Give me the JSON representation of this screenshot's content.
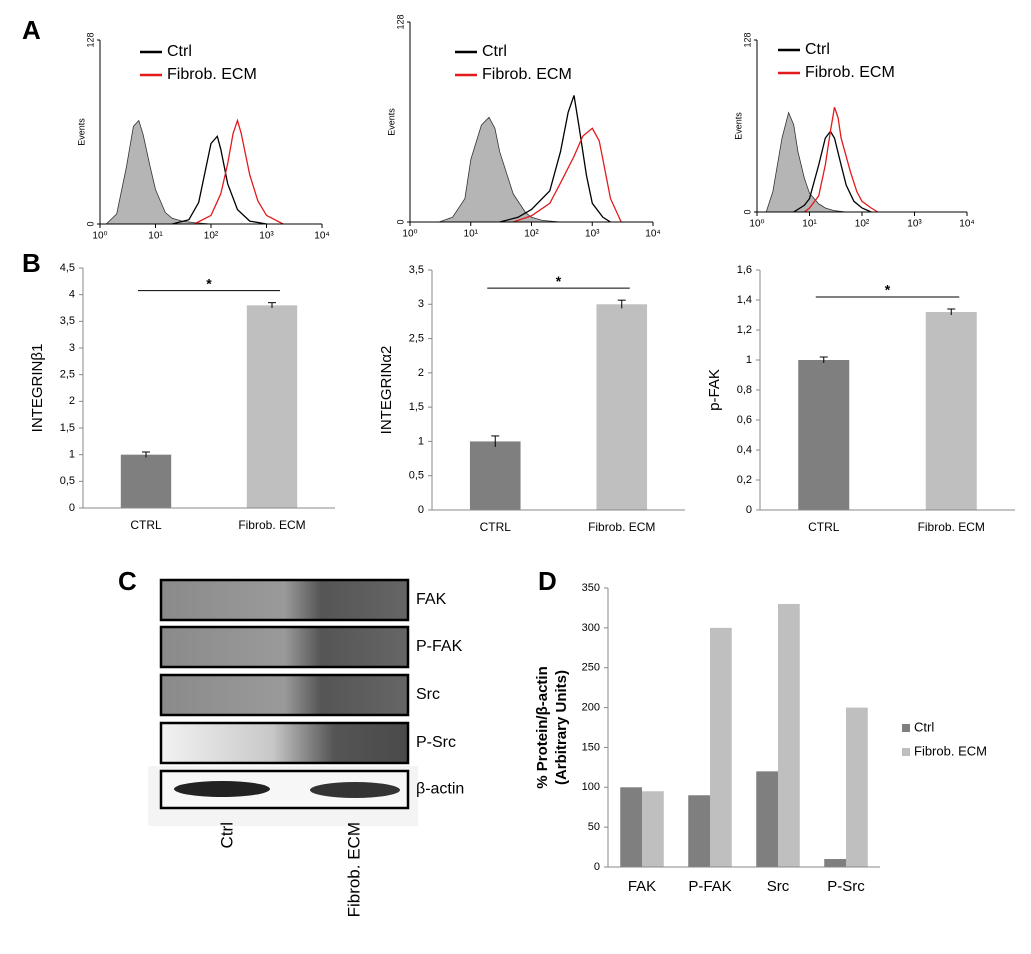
{
  "panels": [
    "A",
    "B",
    "C",
    "D"
  ],
  "blot": {
    "bands": [
      "FAK",
      "P-FAK",
      "Src",
      "P-Src",
      "β-actin"
    ],
    "lanes": [
      "Ctrl",
      "Fibrob. ECM"
    ]
  },
  "chart_data": [
    {
      "type": "line",
      "x_scale": "log",
      "ylabel": "Events",
      "legend": "upper left",
      "xlim": [
        1,
        10000
      ],
      "xticks": [
        {
          "value": 1,
          "label": "10⁰"
        },
        {
          "value": 10,
          "label": "10¹"
        },
        {
          "value": 100,
          "label": "10²"
        },
        {
          "value": 1000,
          "label": "10³"
        },
        {
          "value": 10000,
          "label": "10⁴"
        }
      ],
      "ylim": [
        0,
        128
      ],
      "yticks": [
        0,
        128
      ],
      "series": [
        {
          "color": "#b5b5b5",
          "fill": true,
          "x": [
            1.3,
            2,
            3,
            4,
            5,
            6,
            8,
            10,
            15,
            20,
            30,
            50,
            100
          ],
          "values": [
            0,
            7,
            40,
            68,
            72,
            62,
            40,
            24,
            8,
            4,
            2,
            1,
            0
          ]
        },
        {
          "name": "Ctrl",
          "color": "#000000",
          "x": [
            20,
            40,
            60,
            80,
            100,
            130,
            150,
            200,
            300,
            500,
            1000
          ],
          "values": [
            0,
            3,
            15,
            38,
            56,
            61,
            52,
            28,
            10,
            2,
            0
          ]
        },
        {
          "name": "Fibrob. ECM",
          "color": "#e31a1c",
          "x": [
            50,
            100,
            150,
            200,
            250,
            300,
            350,
            500,
            700,
            1000,
            2000
          ],
          "values": [
            0,
            6,
            21,
            42,
            63,
            72,
            63,
            34,
            16,
            6,
            0
          ]
        }
      ]
    },
    {
      "type": "line",
      "x_scale": "log",
      "ylabel": "Events",
      "legend": "upper left",
      "xlim": [
        1,
        10000
      ],
      "xticks": [
        {
          "value": 1,
          "label": "10⁰"
        },
        {
          "value": 10,
          "label": "10¹"
        },
        {
          "value": 100,
          "label": "10²"
        },
        {
          "value": 1000,
          "label": "10³"
        },
        {
          "value": 10000,
          "label": "10⁴"
        }
      ],
      "ylim": [
        0,
        128
      ],
      "yticks": [
        0,
        128
      ],
      "series": [
        {
          "color": "#b5b5b5",
          "fill": true,
          "x": [
            3,
            5,
            8,
            10,
            15,
            20,
            25,
            30,
            50,
            80,
            100,
            150,
            300
          ],
          "values": [
            0,
            3,
            15,
            40,
            62,
            67,
            60,
            45,
            18,
            6,
            3,
            1,
            0
          ]
        },
        {
          "name": "Ctrl",
          "color": "#000000",
          "x": [
            30,
            60,
            100,
            200,
            300,
            400,
            500,
            600,
            800,
            1000,
            1500,
            2000
          ],
          "values": [
            0,
            3,
            8,
            20,
            45,
            70,
            81,
            62,
            30,
            12,
            3,
            0
          ]
        },
        {
          "name": "Fibrob. ECM",
          "color": "#e31a1c",
          "x": [
            50,
            100,
            200,
            300,
            500,
            700,
            1000,
            1300,
            1500,
            2000,
            3000
          ],
          "values": [
            0,
            4,
            12,
            25,
            42,
            55,
            60,
            52,
            40,
            15,
            0
          ]
        }
      ]
    },
    {
      "type": "line",
      "x_scale": "log",
      "ylabel": "Events",
      "legend": "upper left",
      "xlim": [
        1,
        10000
      ],
      "xticks": [
        {
          "value": 1,
          "label": "10⁰"
        },
        {
          "value": 10,
          "label": "10¹"
        },
        {
          "value": 100,
          "label": "10²"
        },
        {
          "value": 1000,
          "label": "10³"
        },
        {
          "value": 10000,
          "label": "10⁴"
        }
      ],
      "ylim": [
        0,
        128
      ],
      "yticks": [
        0,
        128
      ],
      "series": [
        {
          "color": "#b5b5b5",
          "fill": true,
          "x": [
            1.5,
            2,
            3,
            4,
            5,
            6,
            8,
            10,
            15,
            20,
            30,
            50
          ],
          "values": [
            0,
            15,
            55,
            74,
            65,
            45,
            25,
            14,
            6,
            3,
            1,
            0
          ]
        },
        {
          "name": "Ctrl",
          "color": "#000000",
          "x": [
            5,
            8,
            10,
            15,
            20,
            25,
            30,
            40,
            50,
            70,
            100,
            150
          ],
          "values": [
            0,
            5,
            10,
            35,
            55,
            60,
            55,
            35,
            20,
            8,
            3,
            0
          ]
        },
        {
          "name": "Fibrob. ECM",
          "color": "#e31a1c",
          "x": [
            8,
            10,
            15,
            20,
            25,
            30,
            35,
            40,
            60,
            80,
            100,
            150,
            200
          ],
          "values": [
            0,
            3,
            12,
            35,
            60,
            78,
            70,
            55,
            30,
            15,
            8,
            3,
            0
          ]
        }
      ]
    },
    {
      "type": "bar",
      "ylabel": "INTEGRINβ1",
      "categories": [
        "CTRL",
        "Fibrob. ECM"
      ],
      "values": [
        1,
        3.8
      ],
      "errors": [
        0.05,
        0.05
      ],
      "colors": [
        "#7f7f7f",
        "#bfbfbf"
      ],
      "annotation": "*",
      "ylim": [
        0,
        4.5
      ],
      "yticks": [
        0,
        {
          "value": 0.5,
          "label": "0,5"
        },
        1,
        {
          "value": 1.5,
          "label": "1,5"
        },
        2,
        {
          "value": 2.5,
          "label": "2,5"
        },
        3,
        {
          "value": 3.5,
          "label": "3,5"
        },
        4,
        {
          "value": 4.5,
          "label": "4,5"
        }
      ]
    },
    {
      "type": "bar",
      "ylabel": "INTEGRINα2",
      "categories": [
        "CTRL",
        "Fibrob. ECM"
      ],
      "values": [
        1,
        3.0
      ],
      "errors": [
        0.08,
        0.06
      ],
      "colors": [
        "#7f7f7f",
        "#bfbfbf"
      ],
      "annotation": "*",
      "ylim": [
        0,
        3.5
      ],
      "yticks": [
        0,
        {
          "value": 0.5,
          "label": "0,5"
        },
        1,
        {
          "value": 1.5,
          "label": "1,5"
        },
        2,
        {
          "value": 2.5,
          "label": "2,5"
        },
        3,
        {
          "value": 3.5,
          "label": "3,5"
        }
      ]
    },
    {
      "type": "bar",
      "ylabel": "p-FAK",
      "categories": [
        "CTRL",
        "Fibrob. ECM"
      ],
      "values": [
        1,
        1.32
      ],
      "errors": [
        0.02,
        0.02
      ],
      "colors": [
        "#7f7f7f",
        "#bfbfbf"
      ],
      "annotation": "*",
      "ylim": [
        0,
        1.6
      ],
      "yticks": [
        0,
        {
          "value": 0.2,
          "label": "0,2"
        },
        {
          "value": 0.4,
          "label": "0,4"
        },
        {
          "value": 0.6,
          "label": "0,6"
        },
        {
          "value": 0.8,
          "label": "0,8"
        },
        1,
        {
          "value": 1.2,
          "label": "1,2"
        },
        {
          "value": 1.4,
          "label": "1,4"
        },
        {
          "value": 1.6,
          "label": "1,6"
        }
      ]
    },
    {
      "type": "grouped_bar",
      "ylabel": [
        "% Protein/β-actin",
        "(Arbitrary Units)"
      ],
      "legend": "right",
      "categories": [
        "FAK",
        "P-FAK",
        "Src",
        "P-Src"
      ],
      "series": [
        {
          "name": "Ctrl",
          "color": "#7f7f7f",
          "values": [
            100,
            90,
            120,
            10
          ]
        },
        {
          "name": "Fibrob. ECM",
          "color": "#bfbfbf",
          "values": [
            95,
            300,
            330,
            200
          ]
        }
      ],
      "ylim": [
        0,
        350
      ],
      "yticks": [
        0,
        50,
        100,
        150,
        200,
        250,
        300,
        350
      ]
    }
  ]
}
